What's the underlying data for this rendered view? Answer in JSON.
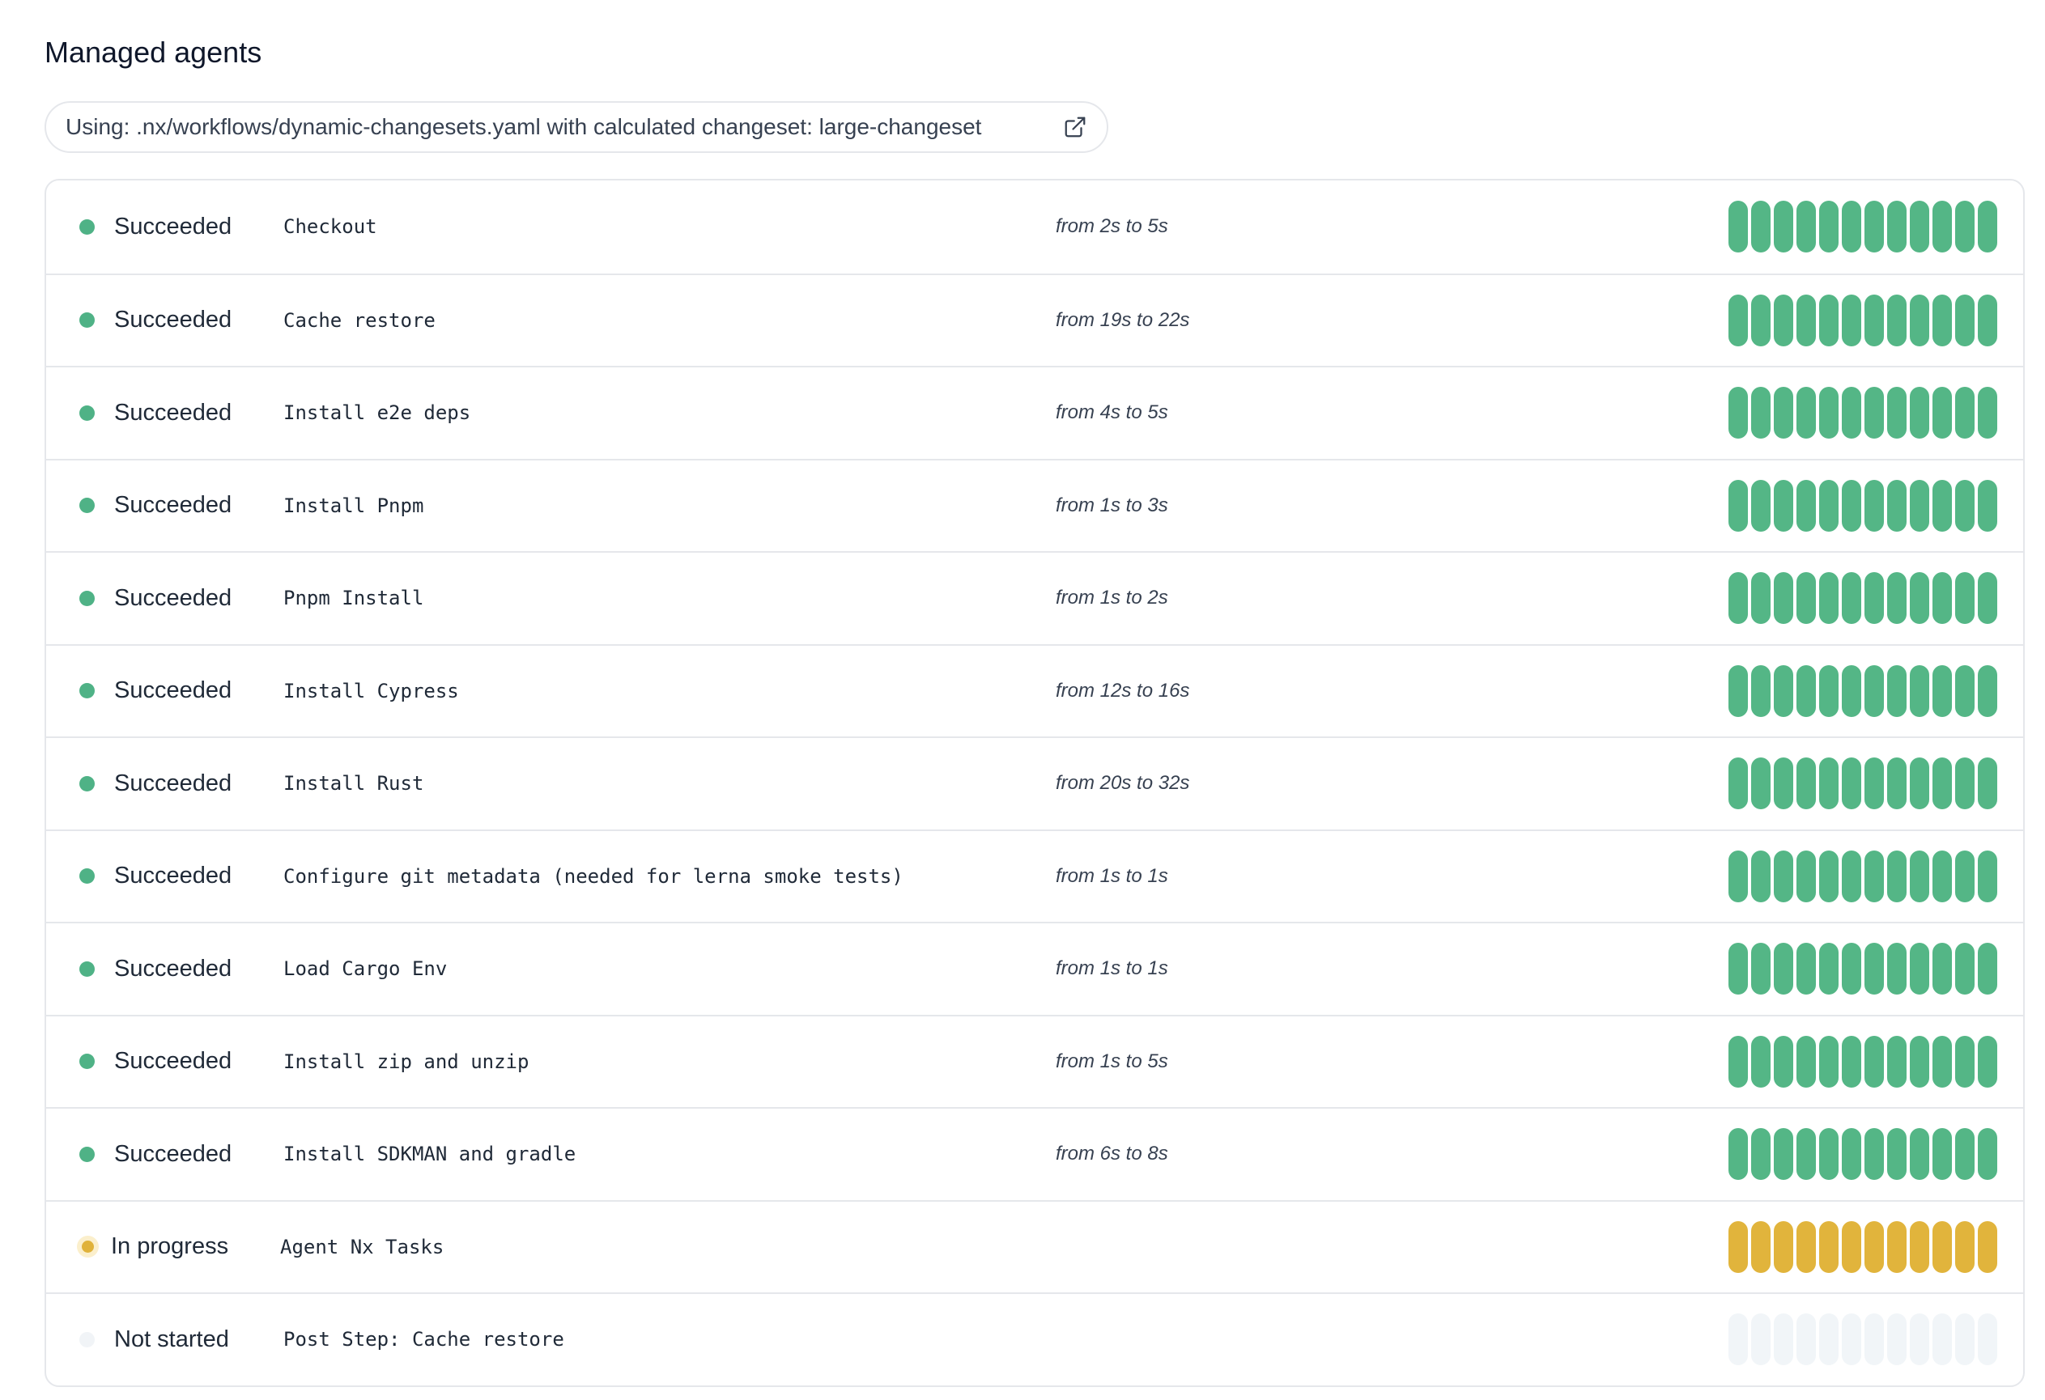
{
  "header": {
    "title": "Managed agents"
  },
  "config": {
    "text": "Using: .nx/workflows/dynamic-changesets.yaml with calculated changeset: large-changeset",
    "icon": "external-link-icon"
  },
  "colors": {
    "succeeded": "#54b686",
    "in_progress": "#e1b43c",
    "not_started": "#f1f5f8"
  },
  "steps": [
    {
      "status": "Succeeded",
      "state": "ok",
      "name": "Checkout",
      "duration": "from 2s to 5s"
    },
    {
      "status": "Succeeded",
      "state": "ok",
      "name": "Cache restore",
      "duration": "from 19s to 22s"
    },
    {
      "status": "Succeeded",
      "state": "ok",
      "name": "Install e2e deps",
      "duration": "from 4s to 5s"
    },
    {
      "status": "Succeeded",
      "state": "ok",
      "name": "Install Pnpm",
      "duration": "from 1s to 3s"
    },
    {
      "status": "Succeeded",
      "state": "ok",
      "name": "Pnpm Install",
      "duration": "from 1s to 2s"
    },
    {
      "status": "Succeeded",
      "state": "ok",
      "name": "Install Cypress",
      "duration": "from 12s to 16s"
    },
    {
      "status": "Succeeded",
      "state": "ok",
      "name": "Install Rust",
      "duration": "from 20s to 32s"
    },
    {
      "status": "Succeeded",
      "state": "ok",
      "name": "Configure git metadata (needed for lerna smoke tests)",
      "duration": "from 1s to 1s"
    },
    {
      "status": "Succeeded",
      "state": "ok",
      "name": "Load Cargo Env",
      "duration": "from 1s to 1s"
    },
    {
      "status": "Succeeded",
      "state": "ok",
      "name": "Install zip and unzip",
      "duration": "from 1s to 5s"
    },
    {
      "status": "Succeeded",
      "state": "ok",
      "name": "Install SDKMAN and gradle",
      "duration": "from 6s to 8s"
    },
    {
      "status": "In progress",
      "state": "prog",
      "name": "Agent Nx Tasks",
      "duration": ""
    },
    {
      "status": "Not started",
      "state": "none",
      "name": "Post Step: Cache restore",
      "duration": ""
    }
  ],
  "agents_per_step": 12
}
